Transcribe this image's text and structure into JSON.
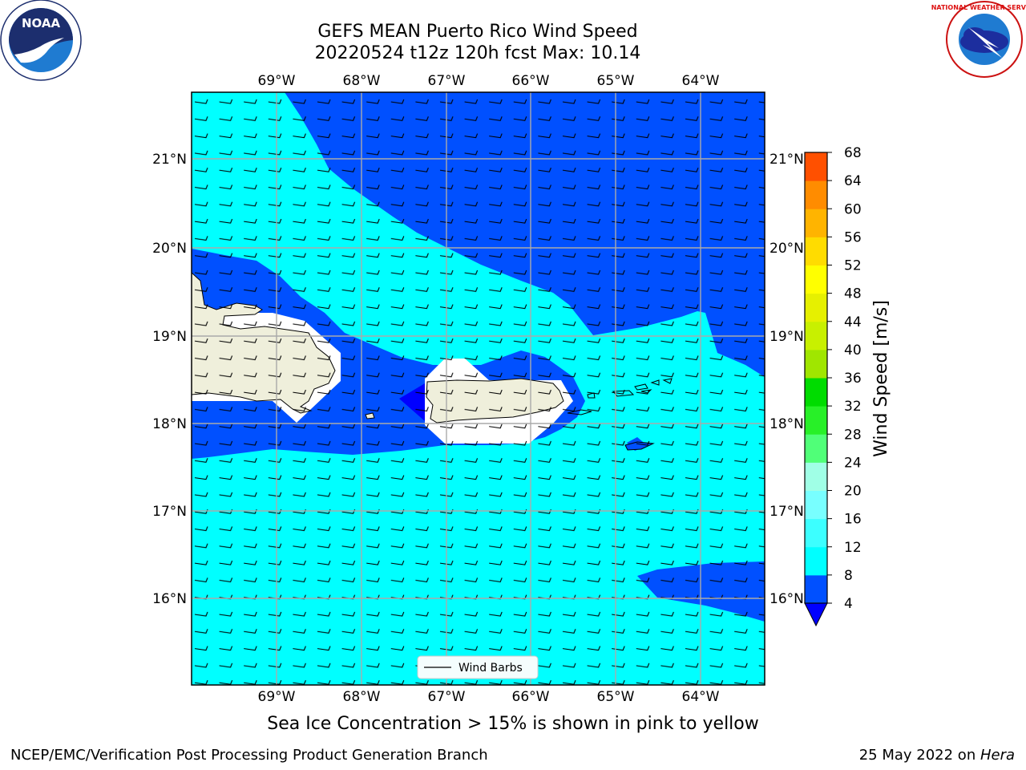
{
  "title_line1": "GEFS MEAN Puerto Rico Wind Speed",
  "title_line2": "20220524 t12z 120h fcst   Max: 10.14",
  "subtitle": "Sea Ice Concentration > 15% is shown in pink to yellow",
  "footer_left": "NCEP/EMC/Verification Post Processing Product Generation Branch",
  "footer_right_date": "25 May 2022 on ",
  "footer_right_host": "Hera",
  "logos": {
    "noaa_text": "NOAA",
    "nws_text": "NATIONAL WEATHER SERVICE"
  },
  "map": {
    "lon_labels": [
      "69°W",
      "68°W",
      "67°W",
      "66°W",
      "65°W",
      "64°W"
    ],
    "lat_labels": [
      "21°N",
      "20°N",
      "19°N",
      "18°N",
      "17°N",
      "16°N"
    ],
    "legend_label": "Wind Barbs"
  },
  "colorbar": {
    "label": "Wind Speed [m/s]",
    "ticks": [
      "4",
      "8",
      "12",
      "16",
      "20",
      "24",
      "28",
      "32",
      "36",
      "40",
      "44",
      "48",
      "52",
      "56",
      "60",
      "64",
      "68"
    ],
    "colors": [
      "#0050ff",
      "#00ffff",
      "#3cffff",
      "#78ffff",
      "#a0ffe6",
      "#50ff78",
      "#28f028",
      "#00dc00",
      "#a0e600",
      "#c8f000",
      "#e6f000",
      "#ffff00",
      "#ffdc00",
      "#ffb400",
      "#ff8c00",
      "#ff5000",
      "#ff2800",
      "#ff0000"
    ],
    "under_color": "#0000ff"
  }
}
